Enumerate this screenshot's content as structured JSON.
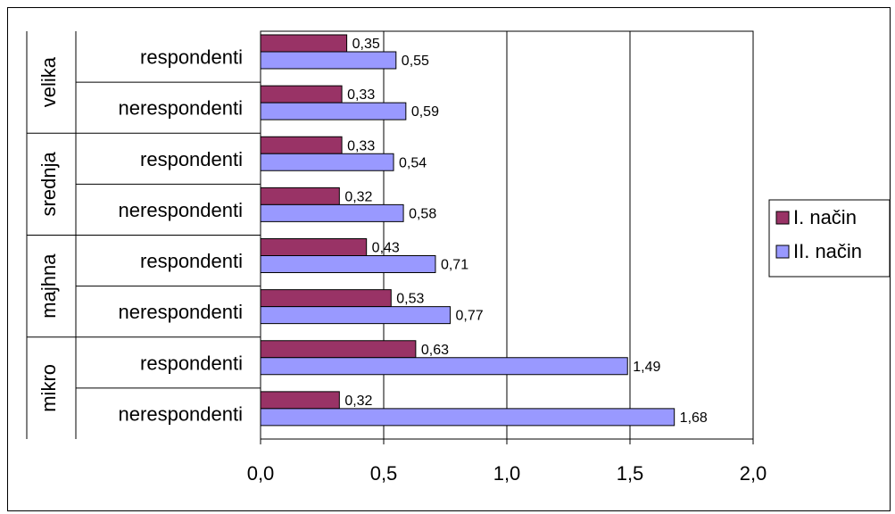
{
  "chart_data": {
    "type": "bar",
    "orientation": "horizontal",
    "groups": [
      {
        "label": "velika",
        "categories": [
          "respondenti",
          "nerespondenti"
        ]
      },
      {
        "label": "srednja",
        "categories": [
          "respondenti",
          "nerespondenti"
        ]
      },
      {
        "label": "majhna",
        "categories": [
          "respondenti",
          "nerespondenti"
        ]
      },
      {
        "label": "mikro",
        "categories": [
          "respondenti",
          "nerespondenti"
        ]
      }
    ],
    "series": [
      {
        "name": "I. način",
        "color": "#993366",
        "values": [
          0.35,
          0.33,
          0.33,
          0.32,
          0.43,
          0.53,
          0.63,
          0.32
        ],
        "labels": [
          "0,35",
          "0,33",
          "0,33",
          "0,32",
          "0,43",
          "0,53",
          "0,63",
          "0,32"
        ]
      },
      {
        "name": "II. način",
        "color": "#9999FF",
        "values": [
          0.55,
          0.59,
          0.54,
          0.58,
          0.71,
          0.77,
          1.49,
          1.68
        ],
        "labels": [
          "0,55",
          "0,59",
          "0,54",
          "0,58",
          "0,71",
          "0,77",
          "1,49",
          "1,68"
        ]
      }
    ],
    "xlim": [
      0,
      2
    ],
    "xticks": [
      "0,0",
      "0,5",
      "1,0",
      "1,5",
      "2,0"
    ],
    "grid": "vertical",
    "legend": "right"
  }
}
